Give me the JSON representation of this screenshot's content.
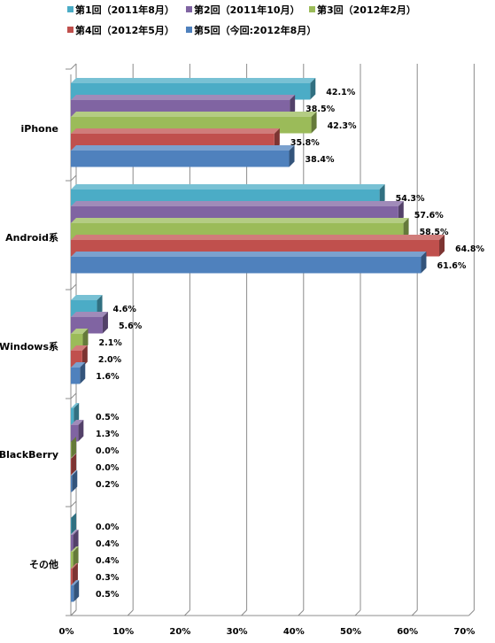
{
  "chart_data": {
    "type": "bar",
    "orientation": "horizontal",
    "style": "3d",
    "categories": [
      "iPhone",
      "Android系",
      "Windows系",
      "BlackBerry",
      "その他"
    ],
    "series": [
      {
        "name": "第1回（2011年8月）",
        "color": "#4bacc6",
        "values": [
          42.1,
          54.3,
          4.6,
          0.5,
          0.0
        ]
      },
      {
        "name": "第2回（2011年10月）",
        "color": "#8064a2",
        "values": [
          38.5,
          57.6,
          5.6,
          1.3,
          0.4
        ]
      },
      {
        "name": "第3回（2012年2月）",
        "color": "#9bbb59",
        "values": [
          42.3,
          58.5,
          2.1,
          0.0,
          0.4
        ]
      },
      {
        "name": "第4回（2012年5月）",
        "color": "#c0504d",
        "values": [
          35.8,
          64.8,
          2.0,
          0.0,
          0.3
        ]
      },
      {
        "name": "第5回（今回:2012年8月）",
        "color": "#4f81bd",
        "values": [
          38.4,
          61.6,
          1.6,
          0.2,
          0.5
        ]
      }
    ],
    "value_labels": [
      [
        "42.1%",
        "54.3%",
        "4.6%",
        "0.5%",
        "0.0%"
      ],
      [
        "38.5%",
        "57.6%",
        "5.6%",
        "1.3%",
        "0.4%"
      ],
      [
        "42.3%",
        "58.5%",
        "2.1%",
        "0.0%",
        "0.4%"
      ],
      [
        "35.8%",
        "64.8%",
        "2.0%",
        "0.0%",
        "0.3%"
      ],
      [
        "38.4%",
        "61.6%",
        "1.6%",
        "0.2%",
        "0.5%"
      ]
    ],
    "xlim": [
      0,
      70
    ],
    "xticks": [
      "0%",
      "10%",
      "20%",
      "30%",
      "40%",
      "50%",
      "60%",
      "70%"
    ],
    "grid": "vertical",
    "legend": "top"
  }
}
